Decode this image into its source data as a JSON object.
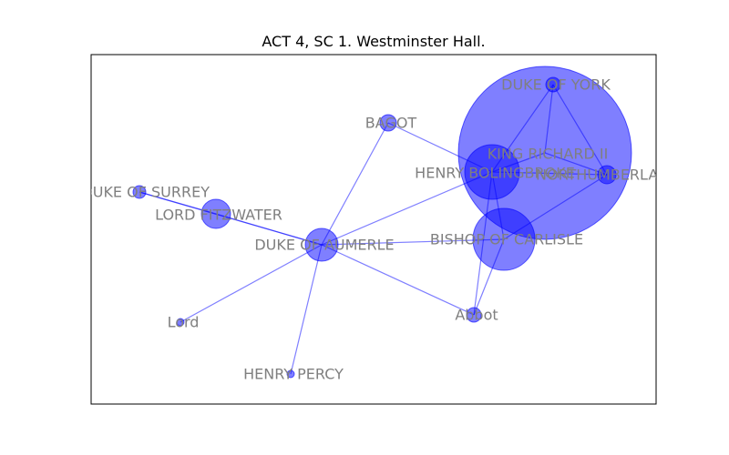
{
  "title": "ACT 4, SC 1. Westminster Hall.",
  "colors": {
    "node_fill": "#0000ff",
    "node_stroke": "#0000ff",
    "edge": "#0000ff",
    "label": "#7f7f7f",
    "frame": "#000000"
  },
  "nodes": [
    {
      "id": "king",
      "label": "KING RICHARD II"
    },
    {
      "id": "york",
      "label": "DUKE OF YORK"
    },
    {
      "id": "bagot",
      "label": "BAGOT"
    },
    {
      "id": "boling",
      "label": "HENRY BOLINGBROKE"
    },
    {
      "id": "north",
      "label": "NORTHUMBERLAND"
    },
    {
      "id": "surrey",
      "label": "DUKE OF SURREY"
    },
    {
      "id": "fitz",
      "label": "LORD FITZWATER"
    },
    {
      "id": "aumerle",
      "label": "DUKE OF AUMERLE"
    },
    {
      "id": "carlisle",
      "label": "BISHOP OF CARLISLE"
    },
    {
      "id": "lord",
      "label": "Lord"
    },
    {
      "id": "abbot",
      "label": "Abbot"
    },
    {
      "id": "percy",
      "label": "HENRY PERCY"
    }
  ],
  "edges": [
    [
      "aumerle",
      "bagot"
    ],
    [
      "aumerle",
      "surrey"
    ],
    [
      "aumerle",
      "fitz"
    ],
    [
      "aumerle",
      "lord"
    ],
    [
      "aumerle",
      "percy"
    ],
    [
      "aumerle",
      "abbot"
    ],
    [
      "aumerle",
      "boling"
    ],
    [
      "aumerle",
      "carlisle"
    ],
    [
      "bagot",
      "boling"
    ],
    [
      "boling",
      "york"
    ],
    [
      "boling",
      "north"
    ],
    [
      "boling",
      "king"
    ],
    [
      "boling",
      "carlisle"
    ],
    [
      "york",
      "king"
    ],
    [
      "york",
      "north"
    ],
    [
      "king",
      "north"
    ],
    [
      "north",
      "carlisle"
    ],
    [
      "carlisle",
      "abbot"
    ],
    [
      "boling",
      "abbot"
    ],
    [
      "surrey",
      "fitz"
    ]
  ]
}
